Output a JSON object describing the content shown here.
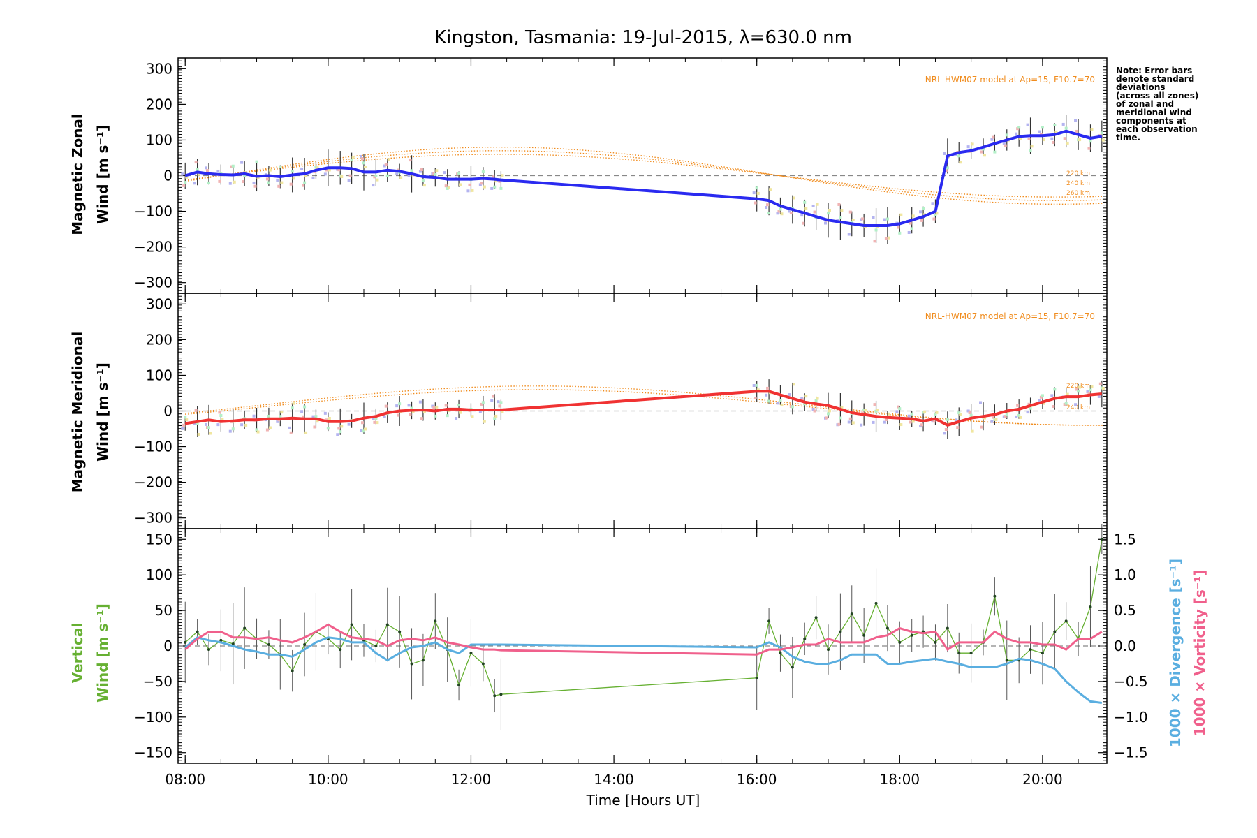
{
  "title": "Kingston, Tasmania: 19-Jul-2015, λ=630.0 nm",
  "xlabel": "Time [Hours UT]",
  "x_ticks": [
    "08:00",
    "10:00",
    "12:00",
    "14:00",
    "16:00",
    "18:00",
    "20:00"
  ],
  "note": [
    "Note: Error bars",
    "denote standard",
    "deviations",
    "(across all zones)",
    "of zonal and",
    "meridional wind",
    "components at",
    "each observation",
    "time."
  ],
  "colors": {
    "zonal": "#2a2af0",
    "meridional": "#f03232",
    "vertical": "#66b032",
    "divergence": "#5aaee0",
    "vorticity": "#f0608c",
    "model": "#f08c1e",
    "zero_line": "#888888"
  },
  "panels": {
    "zonal": {
      "ylabel_line1": "Magnetic Zonal",
      "ylabel_line2": "Wind [m s⁻¹]",
      "yticks": [
        "300",
        "200",
        "100",
        "0",
        "−100",
        "−200",
        "−300"
      ],
      "model_label": "NRL-HWM07 model at Ap=15, F10.7=70",
      "alt_labels": [
        "220 km",
        "240 km",
        "260 km"
      ]
    },
    "meridional": {
      "ylabel_line1": "Magnetic Meridional",
      "ylabel_line2": "Wind [m s⁻¹]",
      "yticks": [
        "300",
        "200",
        "100",
        "0",
        "−100",
        "−200",
        "−300"
      ],
      "model_label": "NRL-HWM07 model at Ap=15, F10.7=70",
      "alt_labels": [
        "220 km",
        "240 km"
      ]
    },
    "vertical": {
      "ylabel_line1": "Vertical",
      "ylabel_line2": "Wind [m s⁻¹]",
      "yticks": [
        "150",
        "100",
        "50",
        "0",
        "−50",
        "−100",
        "−150"
      ],
      "y2label_div": "1000 × Divergence [s⁻¹]",
      "y2label_vort": "1000 × Vorticity [s⁻¹]",
      "y2ticks": [
        "1.5",
        "1.0",
        "0.5",
        "0.0",
        "−0.5",
        "−1.0",
        "−1.5"
      ]
    }
  },
  "chart_data": [
    {
      "type": "line",
      "panel": "zonal",
      "title": "Kingston, Tasmania: 19-Jul-2015, λ=630.0 nm",
      "ylabel": "Magnetic Zonal Wind [m s⁻¹]",
      "xlim": [
        7.9,
        20.9
      ],
      "ylim": [
        -330,
        330
      ],
      "x": [
        8.0,
        8.17,
        8.33,
        8.5,
        8.67,
        8.83,
        9.0,
        9.17,
        9.33,
        9.5,
        9.67,
        9.83,
        10.0,
        10.17,
        10.33,
        10.5,
        10.67,
        10.83,
        11.0,
        11.17,
        11.33,
        11.5,
        11.67,
        11.83,
        12.0,
        12.17,
        12.33,
        12.42,
        16.0,
        16.17,
        16.33,
        16.5,
        16.67,
        16.83,
        17.0,
        17.17,
        17.33,
        17.5,
        17.67,
        17.83,
        18.0,
        18.17,
        18.33,
        18.5,
        18.67,
        18.83,
        19.0,
        19.17,
        19.33,
        19.5,
        19.67,
        19.83,
        20.0,
        20.17,
        20.33,
        20.5,
        20.67,
        20.83
      ],
      "series": [
        {
          "values": [
            0,
            10,
            5,
            3,
            2,
            5,
            -2,
            0,
            -3,
            2,
            5,
            15,
            22,
            22,
            20,
            10,
            10,
            15,
            12,
            5,
            -3,
            -5,
            -10,
            -10,
            -10,
            -8,
            -10,
            -12,
            -65,
            -70,
            -85,
            -95,
            -105,
            -115,
            -125,
            -130,
            -135,
            -140,
            -140,
            -140,
            -135,
            -125,
            -115,
            -100,
            55,
            65,
            70,
            80,
            90,
            100,
            110,
            112,
            112,
            115,
            125,
            115,
            105,
            110
          ]
        }
      ],
      "model_altitudes": [
        "220 km",
        "240 km",
        "260 km"
      ],
      "model_label": "NRL-HWM07 model at Ap=15, F10.7=70"
    },
    {
      "type": "line",
      "panel": "meridional",
      "ylabel": "Magnetic Meridional Wind [m s⁻¹]",
      "xlim": [
        7.9,
        20.9
      ],
      "ylim": [
        -330,
        330
      ],
      "x": [
        8.0,
        8.17,
        8.33,
        8.5,
        8.67,
        8.83,
        9.0,
        9.17,
        9.33,
        9.5,
        9.67,
        9.83,
        10.0,
        10.17,
        10.33,
        10.5,
        10.67,
        10.83,
        11.0,
        11.17,
        11.33,
        11.5,
        11.67,
        11.83,
        12.0,
        12.17,
        12.33,
        12.42,
        16.0,
        16.17,
        16.33,
        16.5,
        16.67,
        16.83,
        17.0,
        17.17,
        17.33,
        17.5,
        17.67,
        17.83,
        18.0,
        18.17,
        18.33,
        18.5,
        18.67,
        18.83,
        19.0,
        19.17,
        19.33,
        19.5,
        19.67,
        19.83,
        20.0,
        20.17,
        20.33,
        20.5,
        20.67,
        20.83
      ],
      "series": [
        {
          "values": [
            -35,
            -30,
            -25,
            -30,
            -28,
            -25,
            -25,
            -22,
            -22,
            -20,
            -22,
            -22,
            -30,
            -30,
            -28,
            -20,
            -15,
            -5,
            0,
            2,
            3,
            0,
            5,
            5,
            3,
            3,
            3,
            3,
            55,
            55,
            45,
            35,
            25,
            20,
            15,
            5,
            -5,
            -10,
            -15,
            -18,
            -20,
            -22,
            -28,
            -22,
            -40,
            -30,
            -20,
            -15,
            -10,
            0,
            5,
            15,
            25,
            35,
            40,
            40,
            45,
            48
          ]
        }
      ],
      "model_altitudes": [
        "220 km",
        "240 km"
      ],
      "model_label": "NRL-HWM07 model at Ap=15, F10.7=70"
    },
    {
      "type": "line",
      "panel": "vertical",
      "xlabel": "Time [Hours UT]",
      "ylabel": "Vertical Wind [m s⁻¹]",
      "y2label": "1000 × Divergence / Vorticity [s⁻¹]",
      "xlim": [
        7.9,
        20.9
      ],
      "ylim": [
        -165,
        165
      ],
      "y2lim": [
        -1.65,
        1.65
      ],
      "x": [
        8.0,
        8.17,
        8.33,
        8.5,
        8.67,
        8.83,
        9.0,
        9.17,
        9.33,
        9.5,
        9.67,
        9.83,
        10.0,
        10.17,
        10.33,
        10.5,
        10.67,
        10.83,
        11.0,
        11.17,
        11.33,
        11.5,
        11.67,
        11.83,
        12.0,
        12.17,
        12.33,
        12.42,
        16.0,
        16.17,
        16.33,
        16.5,
        16.67,
        16.83,
        17.0,
        17.17,
        17.33,
        17.5,
        17.67,
        17.83,
        18.0,
        18.17,
        18.33,
        18.5,
        18.67,
        18.83,
        19.0,
        19.17,
        19.33,
        19.5,
        19.67,
        19.83,
        20.0,
        20.17,
        20.33,
        20.5,
        20.67,
        20.83
      ],
      "series": [
        {
          "name": "Vertical Wind",
          "axis": "left",
          "values": [
            5,
            20,
            -5,
            8,
            3,
            25,
            10,
            2,
            -12,
            -35,
            2,
            20,
            10,
            -5,
            30,
            8,
            0,
            30,
            20,
            -25,
            -20,
            35,
            -5,
            -55,
            -10,
            -25,
            -70,
            -68,
            -45,
            35,
            -10,
            -30,
            10,
            40,
            -5,
            20,
            45,
            15,
            60,
            25,
            5,
            15,
            20,
            5,
            25,
            -10,
            -10,
            5,
            70,
            -20,
            -20,
            -5,
            -10,
            20,
            35,
            10,
            55,
            150
          ]
        },
        {
          "name": "1000 × Divergence",
          "axis": "right",
          "values": [
            -0.02,
            0.12,
            0.08,
            0.05,
            0.0,
            -0.05,
            -0.08,
            -0.12,
            -0.12,
            -0.15,
            -0.05,
            0.05,
            0.12,
            0.1,
            0.05,
            0.05,
            -0.1,
            -0.2,
            -0.1,
            -0.02,
            0.0,
            0.05,
            -0.05,
            -0.1,
            0.02,
            0.02,
            0.02,
            0.02,
            -0.02,
            0.05,
            -0.02,
            -0.15,
            -0.22,
            -0.25,
            -0.25,
            -0.2,
            -0.12,
            -0.12,
            -0.12,
            -0.25,
            -0.25,
            -0.22,
            -0.2,
            -0.18,
            -0.22,
            -0.25,
            -0.3,
            -0.3,
            -0.3,
            -0.25,
            -0.18,
            -0.2,
            -0.25,
            -0.32,
            -0.5,
            -0.65,
            -0.78,
            -0.8
          ]
        },
        {
          "name": "1000 × Vorticity",
          "axis": "right",
          "values": [
            -0.05,
            0.1,
            0.2,
            0.2,
            0.12,
            0.12,
            0.1,
            0.12,
            0.08,
            0.05,
            0.12,
            0.2,
            0.3,
            0.2,
            0.12,
            0.1,
            0.08,
            0.0,
            0.08,
            0.1,
            0.08,
            0.12,
            0.05,
            0.02,
            -0.02,
            -0.05,
            -0.05,
            -0.06,
            -0.12,
            -0.05,
            -0.05,
            -0.02,
            0.02,
            0.02,
            0.1,
            0.05,
            0.05,
            0.05,
            0.12,
            0.15,
            0.25,
            0.2,
            0.18,
            0.2,
            -0.05,
            0.05,
            0.05,
            0.05,
            0.2,
            0.1,
            0.05,
            0.05,
            0.02,
            0.02,
            -0.05,
            0.1,
            0.1,
            0.2
          ]
        }
      ]
    }
  ]
}
